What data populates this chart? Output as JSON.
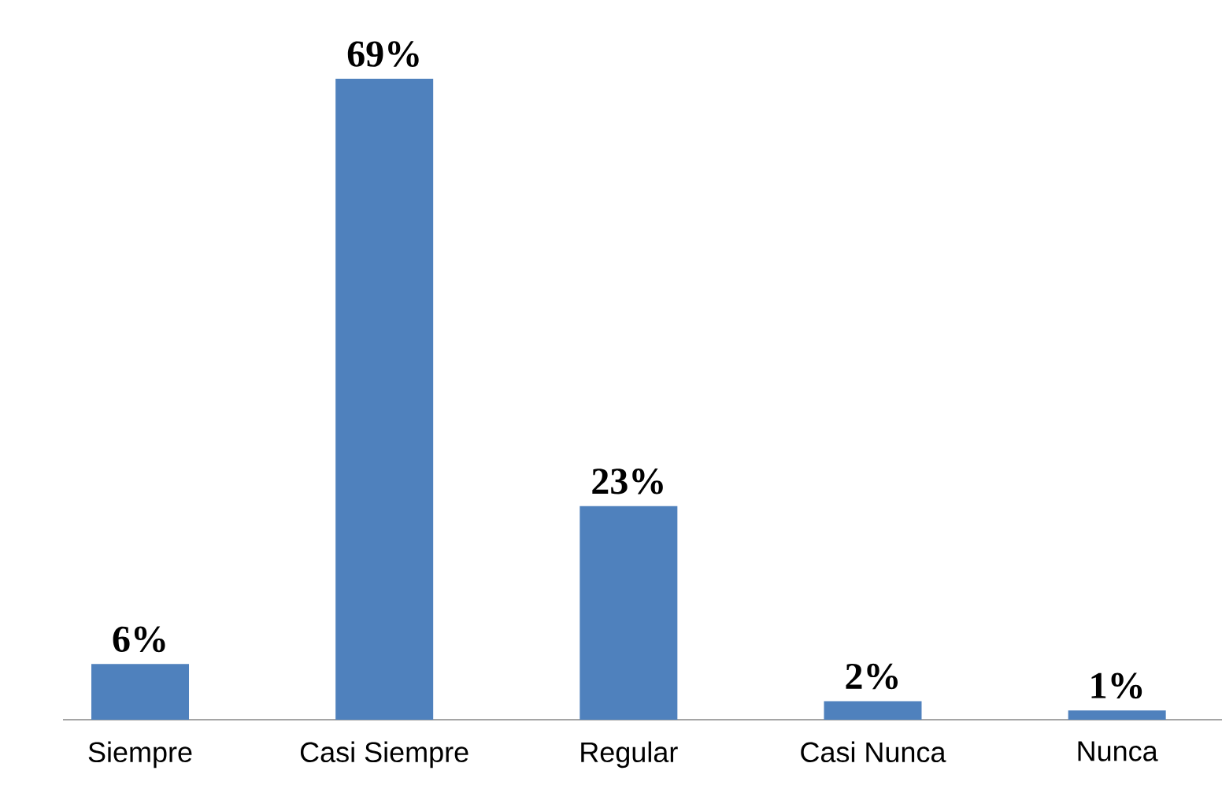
{
  "chart_data": {
    "type": "bar",
    "categories": [
      "Siempre",
      "Casi Siempre",
      "Regular",
      "Casi Nunca",
      "Nunca"
    ],
    "values": [
      6,
      69,
      23,
      2,
      1
    ],
    "value_labels": [
      "6%",
      "69%",
      "23%",
      "2%",
      "1%"
    ],
    "color": "#4f81bd"
  }
}
